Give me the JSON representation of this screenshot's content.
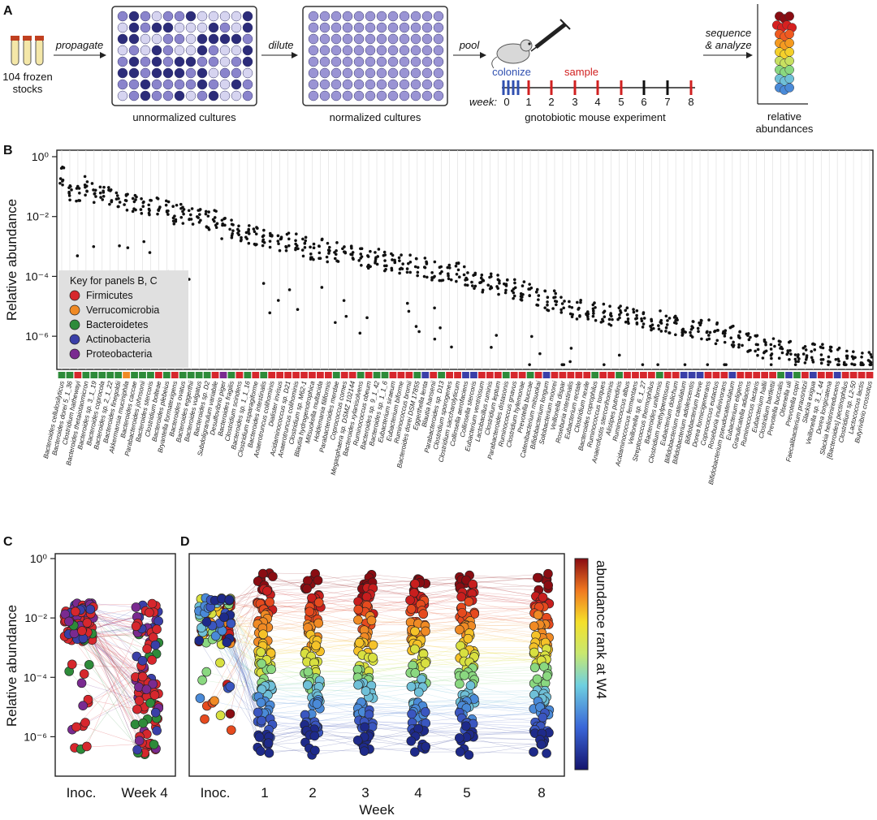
{
  "panels": {
    "a": "A",
    "b": "B",
    "c": "C",
    "d": "D"
  },
  "panel_a": {
    "stocks_line1": "104 frozen",
    "stocks_line2": "stocks",
    "propagate": "propagate",
    "plate1": "unnormalized cultures",
    "dilute": "dilute",
    "plate2": "normalized cultures",
    "pool": "pool",
    "colonize": "colonize",
    "sample": "sample",
    "week_label": "week:",
    "week_ticks": [
      "0",
      "1",
      "2",
      "3",
      "4",
      "5",
      "6",
      "7",
      "8"
    ],
    "experiment": "gnotobiotic mouse experiment",
    "sequence_line1": "sequence",
    "sequence_line2": "& analyze",
    "result_line1": "relative",
    "result_line2": "abundances"
  },
  "legend": {
    "title": "Key for panels B, C",
    "items": [
      {
        "label": "Firmicutes",
        "color": "#d6272d"
      },
      {
        "label": "Verrucomicrobia",
        "color": "#f08a24"
      },
      {
        "label": "Bacteroidetes",
        "color": "#2e8b3a"
      },
      {
        "label": "Actinobacteria",
        "color": "#3a3fa8"
      },
      {
        "label": "Proteobacteria",
        "color": "#7a2a90"
      }
    ]
  },
  "chart_data": [
    {
      "type": "scatter",
      "title": "",
      "ylabel": "Relative abundance",
      "yscale": "log10",
      "ylim": [
        1e-07,
        1
      ],
      "yticks": [
        "10⁰",
        "10⁻²",
        "10⁻⁴",
        "10⁻⁶"
      ],
      "ytick_values": [
        1,
        0.01,
        0.0001,
        1e-06
      ],
      "species": [
        "Bacteroides cellulosilyticus",
        "Bacteroides dorei 5_1_36",
        "Clostridium hathewayi",
        "Bacteroides thetaiotaomicron",
        "Bacteroides sp. 3_1_19",
        "Bacteroides coprocola",
        "Bacteroides sp. 2_1_22",
        "Bacteroides finegoldii",
        "Akkermansia muciniphila",
        "Bacteroides caccae",
        "Parabacteroides johnsonii",
        "Bacteroides stercoris",
        "Clostridium bolteae",
        "Bacteroides plebeius",
        "Bryantella formatexigens",
        "Bacteroides ovatus",
        "Bacteroides eggerthii",
        "Bacteroides vulgatus",
        "Bacteroides sp. D2",
        "Subdoligranulum variabile",
        "Desulfovibrio piger",
        "Bacteroides fragilis",
        "Clostridium scindens",
        "Bacteroides sp. 1_1_16",
        "Clostridium asparagiforme",
        "Bacteroides intestinalis",
        "Anaerotruncus colihominis",
        "Dialister invisus",
        "Acidaminococcus sp. D21",
        "Anaerotruncus colihominis",
        "Clostridium sp. M62-1",
        "Blautia hydrogenotrophica",
        "Mitsuokella multacida",
        "Holdemania filiformis",
        "Parabacteroides merdae",
        "Coprococcus comes",
        "Megasphaera sp. DSMZ 102144",
        "Bacteroides xylanisolvens",
        "Ruminococcus obeum",
        "Bacteroides sp. 9_1_42",
        "Bacteroides sp. 1_1_6",
        "Eubacterium siraeum",
        "Eubacterium biforme",
        "Ruminococcus bromii",
        "Bacteroides dorei DSM 17855",
        "Eggerthella lenta",
        "Blautia hansenii",
        "Parabacteroides sp. D13",
        "Clostridium sporogenes",
        "Clostridium saccharolyticum",
        "Collinsella aerofaciens",
        "Collinsella stercoris",
        "Eubacterium ventriosum",
        "Lactobacillus ruminis",
        "Clostridium leptum",
        "Parabacteroides distasonis",
        "Ruminococcus gnavus",
        "Clostridium hylemonae",
        "Prevotella buccae",
        "Catenibacterium mitsuokai",
        "Bifidobacterium longum",
        "Solobacterium moorei",
        "Veillonella dispar",
        "Roseburia intestinalis",
        "Eubacterium rectale",
        "Clostridium nexile",
        "Bacteroides coprophilus",
        "Ruminococcus torques",
        "Anaerofustis stercorihominis",
        "Alistipes putredinis",
        "Ruminococcus albus",
        "Acidaminococcus fermentans",
        "Veillonella sp. 6_1_27",
        "Streptococcus thermophilus",
        "Bacteroides uniformis",
        "Clostridium methylpentosum",
        "Eubacterium dolichum",
        "Bifidobacterium catenulatum",
        "Bifidobacterium adolescentis",
        "Bifidobacterium breve",
        "Dorea formicigenerans",
        "Coprococcus eutactus",
        "Roseburia inulinivorans",
        "Bifidobacterium pseudocatenulatum",
        "Eubacterium eligens",
        "Granulicatella adiacens",
        "Ruminococcus lactaris",
        "Eubacterium hallii",
        "Clostridium bartlettii",
        "Prevotella buccalis",
        "Olsenella uli",
        "Prevotella copri",
        "Faecalibacterium prausnitzii",
        "Slackia exigua",
        "Veillonella sp. 3_1_44",
        "Dorea longicatena",
        "Slackia heliotrinireducens",
        "[Bacteroides] pectinophilus",
        "Clostridium sp. L2-50",
        "Lactococcus lactis",
        "Butyrivibrio crossotus"
      ],
      "phylum": [
        "B",
        "B",
        "F",
        "B",
        "B",
        "B",
        "B",
        "B",
        "V",
        "B",
        "B",
        "B",
        "F",
        "B",
        "F",
        "B",
        "B",
        "B",
        "B",
        "F",
        "P",
        "B",
        "F",
        "B",
        "F",
        "B",
        "F",
        "F",
        "F",
        "F",
        "F",
        "F",
        "F",
        "F",
        "B",
        "F",
        "F",
        "B",
        "F",
        "B",
        "B",
        "F",
        "F",
        "F",
        "B",
        "A",
        "F",
        "B",
        "F",
        "F",
        "A",
        "A",
        "F",
        "F",
        "F",
        "B",
        "F",
        "F",
        "B",
        "F",
        "A",
        "F",
        "F",
        "F",
        "F",
        "F",
        "B",
        "F",
        "F",
        "B",
        "F",
        "F",
        "F",
        "F",
        "B",
        "F",
        "F",
        "A",
        "A",
        "A",
        "F",
        "F",
        "F",
        "A",
        "F",
        "F",
        "F",
        "F",
        "F",
        "B",
        "A",
        "B",
        "F",
        "A",
        "F",
        "F",
        "A",
        "F",
        "F",
        "F",
        "F"
      ],
      "median_log10": [
        -0.6,
        -1.1,
        -1.2,
        -1.0,
        -1.2,
        -1.3,
        -1.3,
        -1.4,
        -1.6,
        -1.5,
        -1.6,
        -1.6,
        -1.7,
        -1.8,
        -1.9,
        -1.9,
        -2.0,
        -2.0,
        -2.1,
        -2.1,
        -2.4,
        -2.4,
        -2.5,
        -2.6,
        -2.6,
        -2.7,
        -2.7,
        -2.8,
        -2.8,
        -2.9,
        -3.0,
        -3.1,
        -3.1,
        -3.2,
        -3.2,
        -3.3,
        -3.3,
        -3.3,
        -3.4,
        -3.4,
        -3.5,
        -3.5,
        -3.6,
        -3.6,
        -3.7,
        -3.7,
        -3.8,
        -3.8,
        -3.9,
        -3.9,
        -4.0,
        -4.1,
        -4.2,
        -4.2,
        -4.3,
        -4.4,
        -4.4,
        -4.5,
        -4.6,
        -4.7,
        -4.8,
        -4.8,
        -4.9,
        -5.0,
        -5.1,
        -5.1,
        -5.2,
        -5.2,
        -5.3,
        -5.3,
        -5.3,
        -5.4,
        -5.4,
        -5.5,
        -5.5,
        -5.6,
        -5.6,
        -5.7,
        -5.7,
        -5.8,
        -5.8,
        -5.9,
        -6.0,
        -6.0,
        -6.1,
        -6.2,
        -6.3,
        -6.4,
        -6.4,
        -6.5,
        -6.5,
        -6.5,
        -6.6,
        -6.6,
        -6.6,
        -6.7,
        -6.7,
        -6.7,
        -6.8,
        -6.8,
        -6.8
      ]
    },
    {
      "type": "scatter",
      "ylabel": "Relative abundance",
      "yscale": "log10",
      "yticks": [
        "10⁰",
        "10⁻²",
        "10⁻⁴",
        "10⁻⁶"
      ],
      "categories": [
        "Inoc.",
        "Week 4"
      ]
    },
    {
      "type": "scatter",
      "xlabel": "Week",
      "categories": [
        "Inoc.",
        "1",
        "2",
        "3",
        "4",
        "5",
        "8"
      ],
      "colorbar_label": "abundance rank at W4"
    }
  ]
}
